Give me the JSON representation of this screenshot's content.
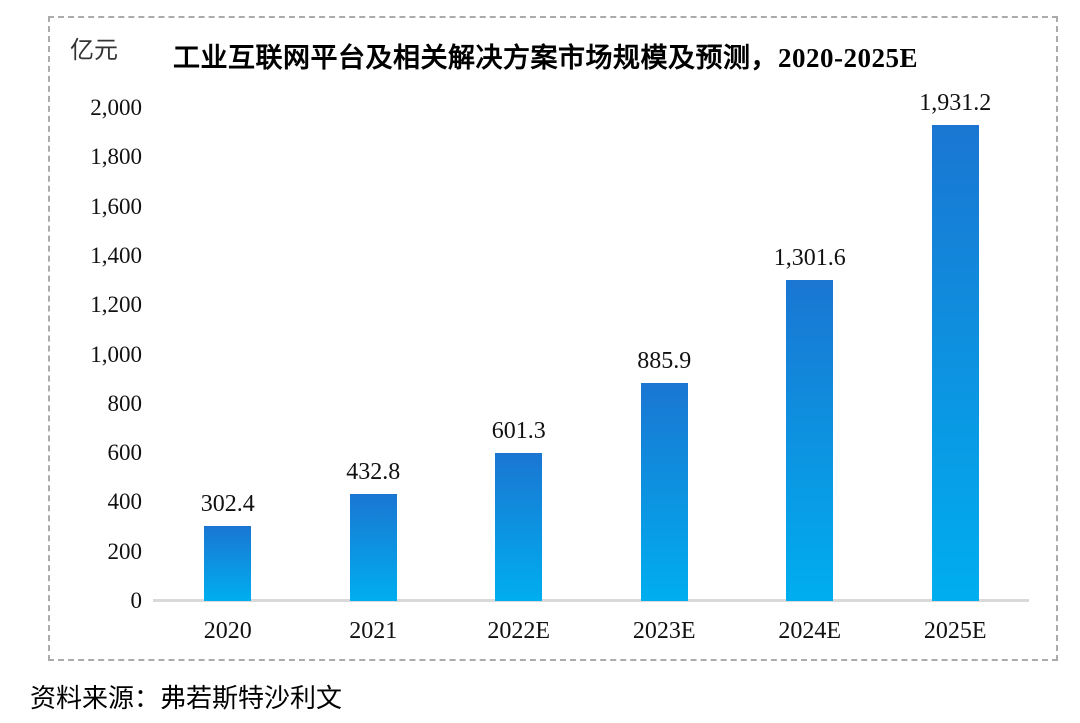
{
  "chart_data": {
    "type": "bar",
    "title": "工业互联网平台及相关解决方案市场规模及预测，2020-2025E",
    "ylabel": "亿元",
    "xlabel": "",
    "categories": [
      "2020",
      "2021",
      "2022E",
      "2023E",
      "2024E",
      "2025E"
    ],
    "values": [
      302.4,
      432.8,
      601.3,
      885.9,
      1301.6,
      1931.2
    ],
    "value_labels": [
      "302.4",
      "432.8",
      "601.3",
      "885.9",
      "1,301.6",
      "1,931.2"
    ],
    "ylim": [
      0,
      2000
    ],
    "ytick_interval": 200,
    "ytick_labels": [
      "0",
      "200",
      "400",
      "600",
      "800",
      "1,000",
      "1,200",
      "1,400",
      "1,600",
      "1,800",
      "2,000"
    ],
    "grid": false,
    "legend": false,
    "bar_color_top": "#1a76d2",
    "bar_color_bottom": "#00aeef",
    "axis_line_color": "#d9d9d9",
    "frame_border_color": "#ababab"
  },
  "source_note": "资料来源：弗若斯特沙利文"
}
